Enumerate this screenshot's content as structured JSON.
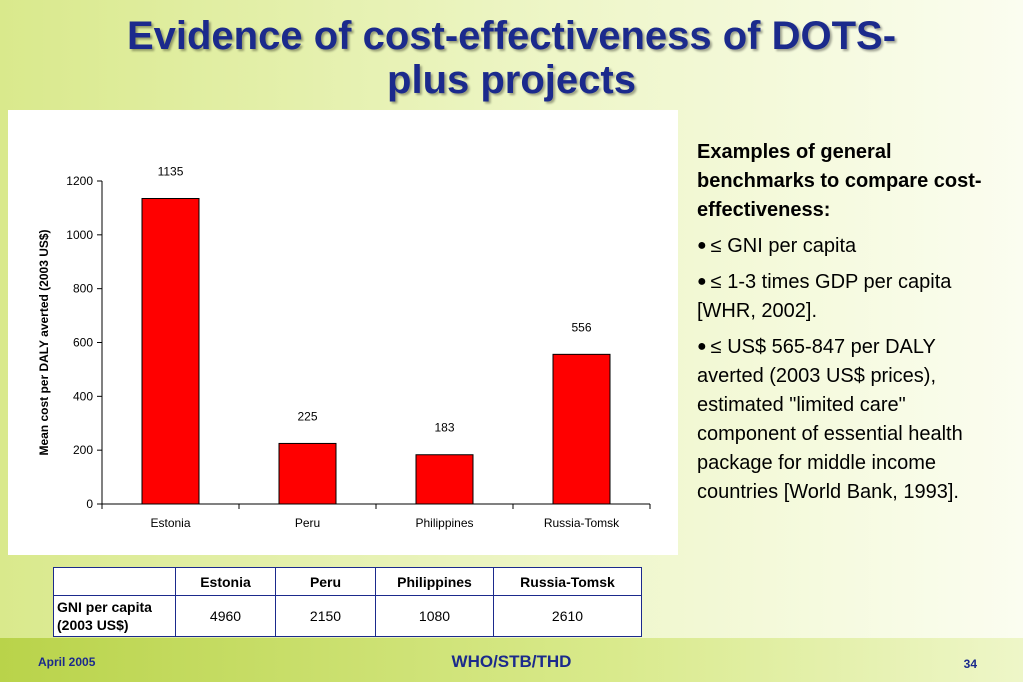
{
  "slide": {
    "title_line1": "Evidence of cost-effectiveness of DOTS-",
    "title_line2": "plus projects"
  },
  "chart_data": {
    "type": "bar",
    "categories": [
      "Estonia",
      "Peru",
      "Philippines",
      "Russia-Tomsk"
    ],
    "values": [
      1135,
      225,
      183,
      556
    ],
    "data_labels": [
      "1135",
      "225",
      "183",
      "556"
    ],
    "title": "",
    "xlabel": "",
    "ylabel": "Mean cost per DALY averted (2003 US$)",
    "ylim": [
      0,
      1200
    ],
    "yticks": [
      0,
      200,
      400,
      600,
      800,
      1000,
      1200
    ],
    "grid": false,
    "bar_color": "#ff0000"
  },
  "right_panel": {
    "heading": "Examples of general benchmarks to compare cost-effectiveness:",
    "bullets": [
      "≤ GNI per capita",
      "≤ 1-3 times GDP per capita [WHR, 2002].",
      "≤ US$ 565-847 per DALY averted (2003 US$ prices), estimated \"limited care\" component of essential health package for middle income countries [World Bank, 1993]."
    ]
  },
  "table": {
    "columns": [
      "Estonia",
      "Peru",
      "Philippines",
      "Russia-Tomsk"
    ],
    "row_label_line1": "GNI per capita",
    "row_label_line2": "(2003 US$)",
    "values": [
      "4960",
      "2150",
      "1080",
      "2610"
    ]
  },
  "footer": {
    "date": "April 2005",
    "org": "WHO/STB/THD",
    "page": "34"
  },
  "colors": {
    "title": "#1b2a8c",
    "bar": "#ff0000",
    "table_border": "#1b2a8c"
  }
}
